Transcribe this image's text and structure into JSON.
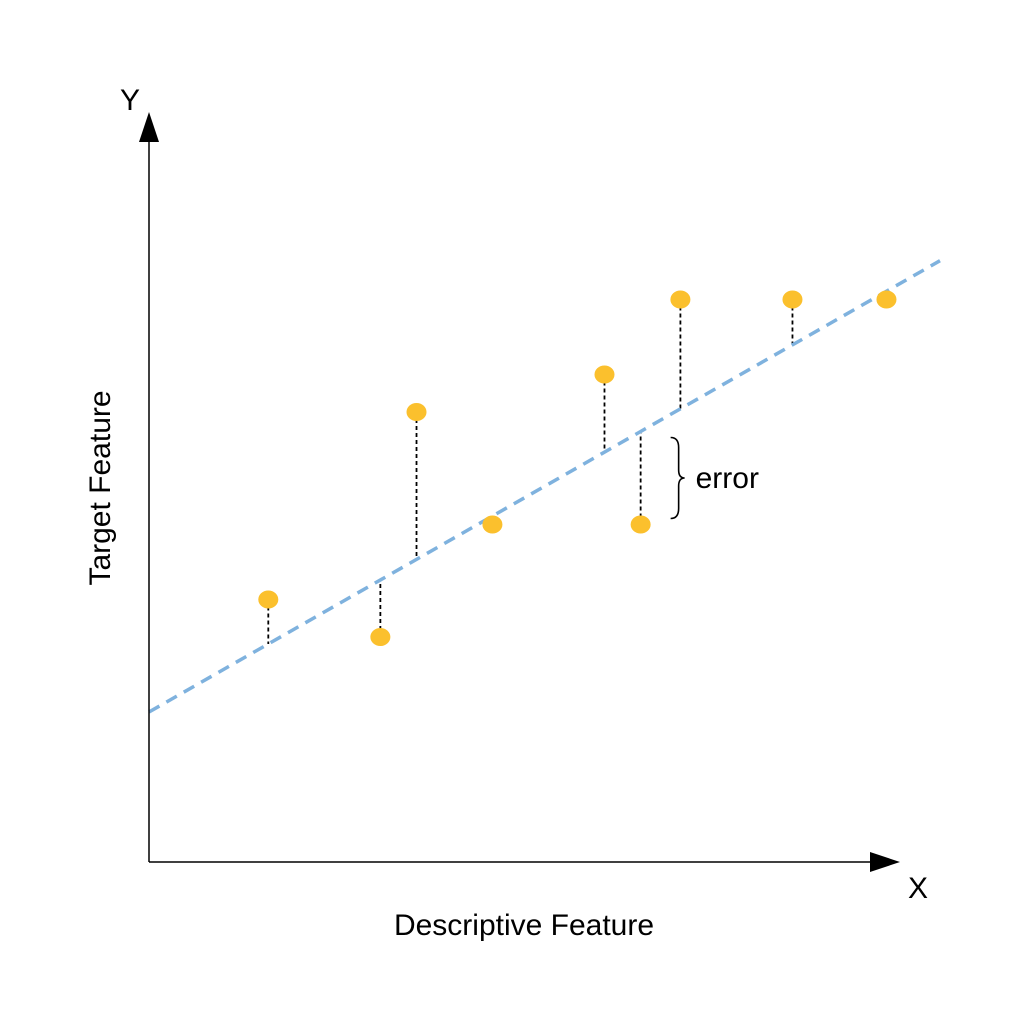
{
  "chart_data": {
    "type": "scatter",
    "title": "",
    "xlabel": "Descriptive Feature",
    "ylabel": "Target Feature",
    "x_axis_letter": "X",
    "y_axis_letter": "Y",
    "xlim": [
      0,
      10
    ],
    "ylim": [
      0,
      10
    ],
    "grid": false,
    "points": [
      {
        "x": 1.65,
        "y": 3.5
      },
      {
        "x": 3.2,
        "y": 3.0
      },
      {
        "x": 3.7,
        "y": 6.0
      },
      {
        "x": 4.75,
        "y": 4.5
      },
      {
        "x": 6.3,
        "y": 6.5
      },
      {
        "x": 6.8,
        "y": 4.5
      },
      {
        "x": 7.35,
        "y": 7.5
      },
      {
        "x": 8.9,
        "y": 7.5
      },
      {
        "x": 10.2,
        "y": 7.5
      }
    ],
    "fit_line": {
      "intercept": 2.0,
      "slope": 0.55,
      "style": "dashed"
    },
    "residuals": "dotted vertical segments from each point to the fit line",
    "annotation": {
      "text": "error",
      "point_index": 5
    },
    "colors": {
      "points": "#FBC02D",
      "fit_line": "#7FB2DE",
      "residual": "#000000",
      "axes": "#000000"
    }
  }
}
